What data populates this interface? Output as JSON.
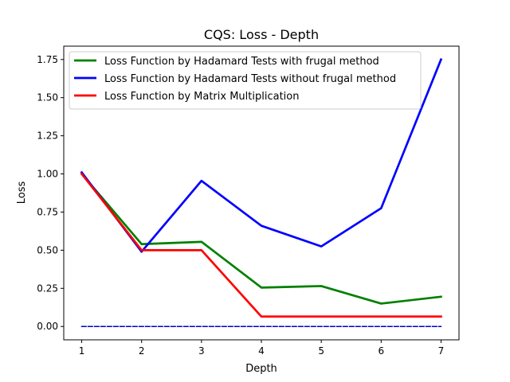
{
  "chart_data": {
    "type": "line",
    "title": "CQS: Loss - Depth",
    "xlabel": "Depth",
    "ylabel": "Loss",
    "x": [
      1,
      2,
      3,
      4,
      5,
      6,
      7
    ],
    "xlim": [
      0.7,
      7.3
    ],
    "ylim": [
      -0.0875,
      1.8375
    ],
    "xticks": [
      "1",
      "2",
      "3",
      "4",
      "5",
      "6",
      "7"
    ],
    "yticks": [
      "0.00",
      "0.25",
      "0.50",
      "0.75",
      "1.00",
      "1.25",
      "1.50",
      "1.75"
    ],
    "grid": false,
    "legend_position": "top-left",
    "series": [
      {
        "name": "Loss Function by Hadamard Tests with frugal method",
        "color": "#008000",
        "style": "solid",
        "values": [
          1.0,
          0.54,
          0.555,
          0.255,
          0.265,
          0.15,
          0.195
        ]
      },
      {
        "name": "Loss Function by Hadamard Tests without frugal method",
        "color": "#0000ff",
        "style": "solid",
        "values": [
          1.01,
          0.49,
          0.955,
          0.66,
          0.525,
          0.775,
          1.75
        ]
      },
      {
        "name": "Loss Function by Matrix Multiplication",
        "color": "#ff0000",
        "style": "solid",
        "values": [
          1.0,
          0.5,
          0.5,
          0.065,
          0.065,
          0.065,
          0.065
        ]
      },
      {
        "color": "#0000cc",
        "style": "dashed",
        "values": [
          0,
          0,
          0,
          0,
          0,
          0,
          0
        ]
      }
    ]
  }
}
